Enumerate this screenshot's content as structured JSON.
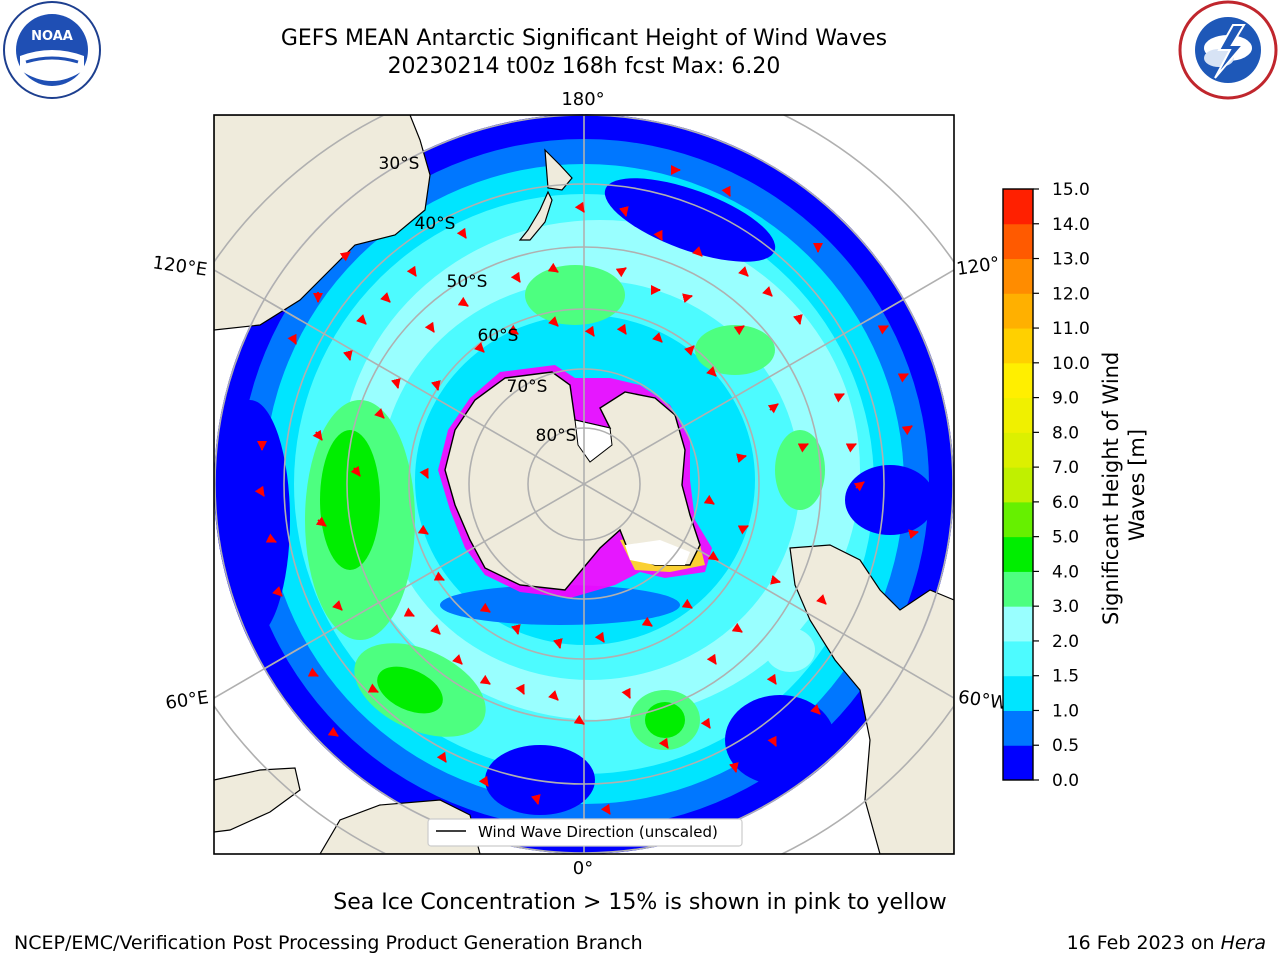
{
  "title": {
    "line1": "GEFS MEAN Antarctic Significant Height of Wind Waves",
    "line2": "20230214 t00z 168h fcst   Max: 6.20"
  },
  "logos": {
    "noaa": {
      "name": "noaa-logo",
      "text": "NOAA",
      "ring_text": "NATIONAL OCEANIC AND ATMOSPHERIC ADMINISTRATION · U.S. DEPARTMENT OF COMMERCE"
    },
    "nws": {
      "name": "nws-logo",
      "ring_text": "NATIONAL WEATHER SERVICE"
    }
  },
  "map": {
    "projection": "south-polar-stereographic",
    "longitude_labels": {
      "top": "180°",
      "bottom": "0°",
      "upper_left": "120°E",
      "upper_right": "120°",
      "lower_left": "60°E",
      "lower_right": "60°W"
    },
    "latitude_labels": [
      "30°S",
      "40°S",
      "50°S",
      "60°S",
      "70°S",
      "80°S"
    ],
    "legend_label": "Wind Wave Direction (unscaled)",
    "arrow_color": "#ff0000",
    "land_color": "#efebdc",
    "sea_ice_colors": [
      "#ff00ff",
      "#ffff00"
    ]
  },
  "colorbar": {
    "label": "Significant Height of Wind Waves [m]",
    "ticks": [
      "0.0",
      "0.5",
      "1.0",
      "1.5",
      "2.0",
      "3.0",
      "4.0",
      "5.0",
      "6.0",
      "7.0",
      "8.0",
      "9.0",
      "10.0",
      "11.0",
      "12.0",
      "13.0",
      "14.0",
      "15.0"
    ],
    "colors": [
      "#0000ff",
      "#0077ff",
      "#00e5ff",
      "#4dfbff",
      "#99ffff",
      "#4dff80",
      "#00ee00",
      "#66f000",
      "#c0f000",
      "#dcf000",
      "#f0f000",
      "#ffef00",
      "#ffd000",
      "#ffb000",
      "#ff8c00",
      "#ff5a00",
      "#ff2000"
    ]
  },
  "caption": "Sea Ice Concentration > 15% is shown in pink to yellow",
  "footer": {
    "left": "NCEP/EMC/Verification Post Processing Product Generation Branch",
    "right_date": "16 Feb 2023 on ",
    "right_machine": "Hera"
  }
}
